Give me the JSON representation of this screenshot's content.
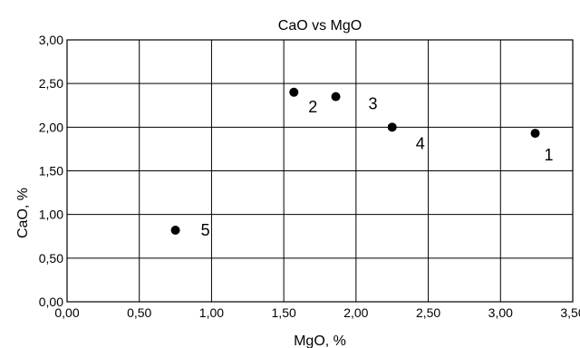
{
  "chart_data": {
    "type": "scatter",
    "title": "CaO vs MgO",
    "xlabel": "MgO, %",
    "ylabel": "CaO, %",
    "xlim": [
      0,
      3.5
    ],
    "ylim": [
      0,
      3.0
    ],
    "xticks": [
      "0,00",
      "0,50",
      "1,00",
      "1,50",
      "2,00",
      "2,50",
      "3,00",
      "3,50"
    ],
    "yticks": [
      "0,00",
      "0,50",
      "1,00",
      "1,50",
      "2,00",
      "2,50",
      "3,00"
    ],
    "grid": true,
    "marker_color": "#000000",
    "points": [
      {
        "label": "1",
        "x": 3.24,
        "y": 1.93
      },
      {
        "label": "2",
        "x": 1.57,
        "y": 2.4
      },
      {
        "label": "3",
        "x": 1.86,
        "y": 2.35
      },
      {
        "label": "4",
        "x": 2.25,
        "y": 2.0
      },
      {
        "label": "5",
        "x": 0.75,
        "y": 0.82
      }
    ]
  }
}
